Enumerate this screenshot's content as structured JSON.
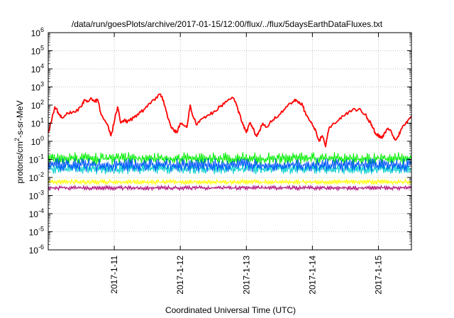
{
  "chart_data": {
    "type": "line",
    "title": "/data/run/goesPlots/archive/2017-01-15/12:00/flux/../flux/5daysEarthDataFluxes.txt",
    "xlabel": "Coordinated Universal Time (UTC)",
    "ylabel": {
      "base": "protons/cm",
      "sup": "2",
      "rest": "-s-sr-MeV"
    },
    "yscale": "log",
    "ylim": [
      -6,
      6
    ],
    "y_ticks": [
      {
        "exp": 6,
        "base": "10",
        "sup": "6"
      },
      {
        "exp": 5,
        "base": "10",
        "sup": "5"
      },
      {
        "exp": 4,
        "base": "10",
        "sup": "4"
      },
      {
        "exp": 3,
        "base": "10",
        "sup": "3"
      },
      {
        "exp": 2,
        "base": "10",
        "sup": "2"
      },
      {
        "exp": 1,
        "base": "10",
        "sup": "1"
      },
      {
        "exp": 0,
        "base": "10",
        "sup": "0"
      },
      {
        "exp": -1,
        "base": "10",
        "sup": "-1"
      },
      {
        "exp": -2,
        "base": "10",
        "sup": "-2"
      },
      {
        "exp": -3,
        "base": "10",
        "sup": "-3"
      },
      {
        "exp": -4,
        "base": "10",
        "sup": "-4"
      },
      {
        "exp": -5,
        "base": "10",
        "sup": "-5"
      },
      {
        "exp": -6,
        "base": "10",
        "sup": "-6"
      }
    ],
    "xlim": [
      "2017-01-10 00:00",
      "2017-01-15 12:00"
    ],
    "x_ticks": [
      {
        "day": 1,
        "label": "2017-1-11"
      },
      {
        "day": 2,
        "label": "2017-1-12"
      },
      {
        "day": 3,
        "label": "2017-1-13"
      },
      {
        "day": 4,
        "label": "2017-1-14"
      },
      {
        "day": 5,
        "label": "2017-1-15"
      }
    ],
    "grid": true,
    "series": [
      {
        "color": "#ff0000",
        "x_days": [
          0,
          0.1,
          0.15,
          0.2,
          0.3,
          0.4,
          0.5,
          0.55,
          0.6,
          0.65,
          0.7,
          0.75,
          0.8,
          0.85,
          0.9,
          0.95,
          1.0,
          1.05,
          1.1,
          1.15,
          1.2,
          1.3,
          1.4,
          1.5,
          1.6,
          1.7,
          1.75,
          1.8,
          1.85,
          1.9,
          1.95,
          2.0,
          2.05,
          2.1,
          2.15,
          2.2,
          2.25,
          2.3,
          2.4,
          2.5,
          2.6,
          2.7,
          2.8,
          2.85,
          2.9,
          2.95,
          3.0,
          3.05,
          3.1,
          3.15,
          3.2,
          3.25,
          3.3,
          3.4,
          3.5,
          3.6,
          3.7,
          3.75,
          3.8,
          3.85,
          3.9,
          3.95,
          4.0,
          4.05,
          4.1,
          4.15,
          4.2,
          4.25,
          4.3,
          4.4,
          4.5,
          4.6,
          4.7,
          4.8,
          4.85,
          4.9,
          4.95,
          5.0,
          5.05,
          5.1,
          5.15,
          5.2,
          5.25,
          5.3,
          5.35,
          5.4,
          5.45,
          5.5
        ],
        "values": [
          3,
          80,
          40,
          20,
          35,
          40,
          80,
          200,
          150,
          250,
          150,
          200,
          30,
          15,
          8,
          2,
          12,
          80,
          10,
          15,
          12,
          20,
          40,
          80,
          200,
          400,
          150,
          30,
          8,
          4,
          3,
          10,
          8,
          6,
          100,
          20,
          8,
          15,
          25,
          40,
          80,
          150,
          250,
          100,
          30,
          8,
          3,
          10,
          5,
          2,
          4,
          10,
          6,
          15,
          30,
          80,
          150,
          200,
          150,
          100,
          30,
          15,
          8,
          4,
          1,
          2,
          0.5,
          5,
          8,
          15,
          30,
          50,
          60,
          30,
          15,
          8,
          3,
          2,
          1.5,
          3,
          5,
          3,
          1.2,
          1.8,
          5,
          8,
          15,
          25
        ]
      },
      {
        "color": "#00ee00",
        "band": [
          0.05,
          0.25
        ]
      },
      {
        "color": "#00cccc",
        "band": [
          0.015,
          0.06
        ]
      },
      {
        "color": "#0055ff",
        "band": [
          0.02,
          0.12
        ]
      },
      {
        "color": "#ffff00",
        "band": [
          0.004,
          0.008
        ]
      },
      {
        "color": "#aa0077",
        "band": [
          0.002,
          0.0035
        ]
      }
    ]
  }
}
